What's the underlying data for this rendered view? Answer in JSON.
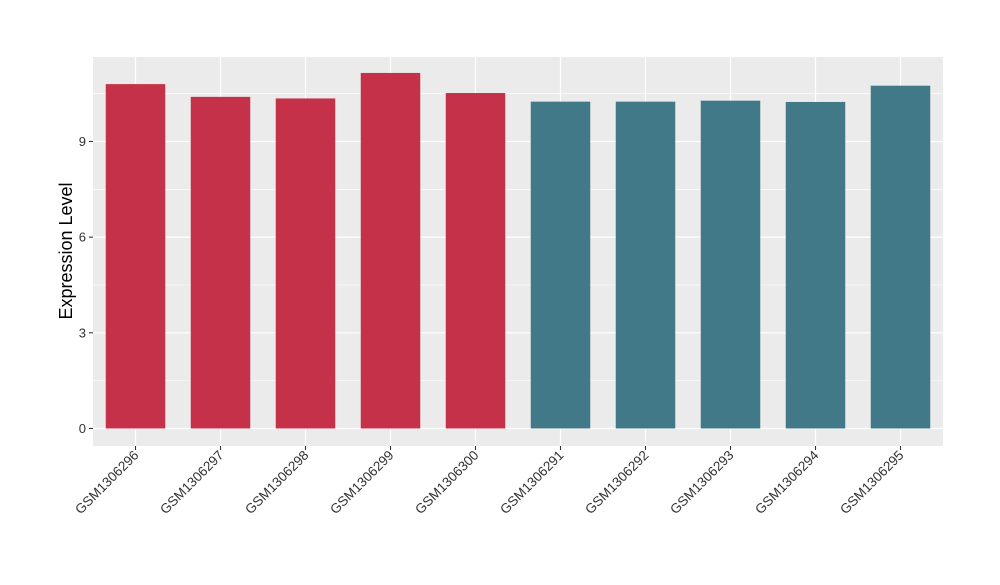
{
  "chart_data": {
    "type": "bar",
    "title": "",
    "xlabel": "",
    "ylabel": "Expression Level",
    "categories": [
      "GSM1306296",
      "GSM1306297",
      "GSM1306298",
      "GSM1306299",
      "GSM1306300",
      "GSM1306291",
      "GSM1306292",
      "GSM1306293",
      "GSM1306294",
      "GSM1306295"
    ],
    "values": [
      10.8,
      10.4,
      10.35,
      11.15,
      10.52,
      10.25,
      10.25,
      10.28,
      10.24,
      10.75
    ],
    "bar_colors": [
      "#c43148",
      "#c43148",
      "#c43148",
      "#c43148",
      "#c43148",
      "#427989",
      "#427989",
      "#427989",
      "#427989",
      "#427989"
    ],
    "yticks": [
      0,
      3,
      6,
      9
    ],
    "ylim": [
      -0.55,
      11.65
    ],
    "grid": true,
    "legend": "none",
    "background_color": "#ebebeb",
    "grid_color": "#ffffff"
  }
}
